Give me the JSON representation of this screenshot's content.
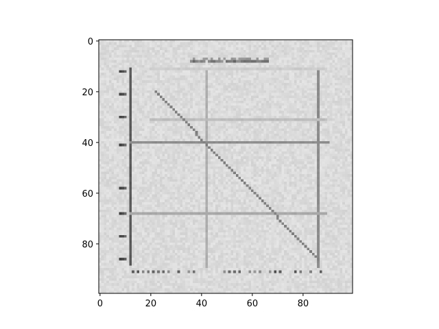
{
  "chart_data": {
    "type": "heatmap",
    "colormap": "grayscale",
    "image_size": [
      100,
      100
    ],
    "x_range": [
      0,
      100
    ],
    "y_range": [
      0,
      100
    ],
    "y_inverted": true,
    "grid": false,
    "x_ticks": [
      0,
      20,
      40,
      60,
      80
    ],
    "y_ticks": [
      0,
      20,
      40,
      60,
      80
    ],
    "x_tick_labels": [
      "0",
      "20",
      "40",
      "60",
      "80"
    ],
    "y_tick_labels": [
      "0",
      "20",
      "40",
      "60",
      "80"
    ],
    "background_gray": 0.86,
    "depicted_content": {
      "thick_vertical_line": {
        "x": 12,
        "y_from": 11,
        "y_to": 88,
        "gray": 0.35
      },
      "vertical_lines": [
        {
          "x": 42,
          "y_from": 11,
          "y_to": 89,
          "gray": 0.68
        },
        {
          "x": 86,
          "y_from": 11,
          "y_to": 89,
          "gray": 0.55
        }
      ],
      "horizontal_lines": [
        {
          "y": 40,
          "x_from": 12,
          "x_to": 90,
          "gray": 0.55
        },
        {
          "y": 31,
          "x_from": 20,
          "x_to": 89,
          "gray": 0.74
        },
        {
          "y": 68,
          "x_from": 12,
          "x_to": 89,
          "gray": 0.66
        },
        {
          "y": 11,
          "x_from": 20,
          "x_to": 89,
          "gray": 0.8
        }
      ],
      "diagonal_line": {
        "x_from": 22,
        "y_from": 20,
        "x_to": 86,
        "y_to": 86,
        "gray": 0.5
      },
      "title_blob": {
        "x_from": 36,
        "x_to": 66,
        "y": 8,
        "gray": 0.4
      },
      "left_tick_marks_y": [
        12,
        21,
        30,
        41,
        58,
        68,
        77,
        86
      ],
      "bottom_tick_marks_y": 91
    }
  }
}
